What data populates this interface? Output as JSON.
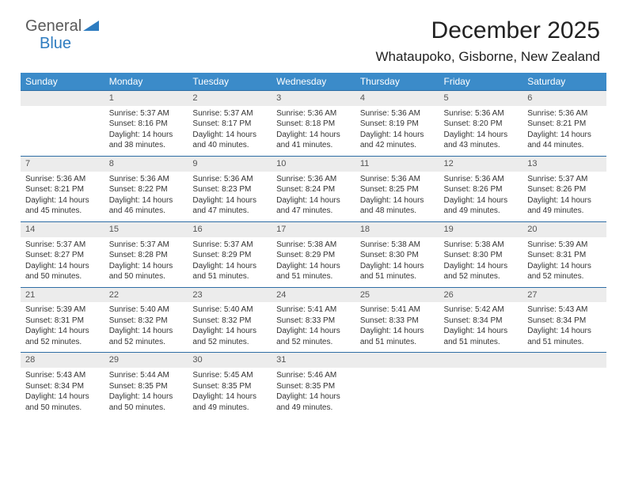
{
  "brand": {
    "part1": "General",
    "part2": "Blue"
  },
  "title": "December 2025",
  "location": "Whataupoko, Gisborne, New Zealand",
  "colors": {
    "header_bg": "#3b8bc9",
    "header_text": "#ffffff",
    "rule": "#2e6da4",
    "daynum_bg": "#ececec",
    "brand_blue": "#2e7cc0",
    "text": "#333333"
  },
  "typography": {
    "title_fontsize": 30,
    "location_fontsize": 17,
    "weekday_fontsize": 12,
    "daynum_fontsize": 11,
    "body_fontsize": 10
  },
  "weekdays": [
    "Sunday",
    "Monday",
    "Tuesday",
    "Wednesday",
    "Thursday",
    "Friday",
    "Saturday"
  ],
  "weeks": [
    [
      null,
      {
        "n": "1",
        "sr": "5:37 AM",
        "ss": "8:16 PM",
        "dl": "14 hours and 38 minutes."
      },
      {
        "n": "2",
        "sr": "5:37 AM",
        "ss": "8:17 PM",
        "dl": "14 hours and 40 minutes."
      },
      {
        "n": "3",
        "sr": "5:36 AM",
        "ss": "8:18 PM",
        "dl": "14 hours and 41 minutes."
      },
      {
        "n": "4",
        "sr": "5:36 AM",
        "ss": "8:19 PM",
        "dl": "14 hours and 42 minutes."
      },
      {
        "n": "5",
        "sr": "5:36 AM",
        "ss": "8:20 PM",
        "dl": "14 hours and 43 minutes."
      },
      {
        "n": "6",
        "sr": "5:36 AM",
        "ss": "8:21 PM",
        "dl": "14 hours and 44 minutes."
      }
    ],
    [
      {
        "n": "7",
        "sr": "5:36 AM",
        "ss": "8:21 PM",
        "dl": "14 hours and 45 minutes."
      },
      {
        "n": "8",
        "sr": "5:36 AM",
        "ss": "8:22 PM",
        "dl": "14 hours and 46 minutes."
      },
      {
        "n": "9",
        "sr": "5:36 AM",
        "ss": "8:23 PM",
        "dl": "14 hours and 47 minutes."
      },
      {
        "n": "10",
        "sr": "5:36 AM",
        "ss": "8:24 PM",
        "dl": "14 hours and 47 minutes."
      },
      {
        "n": "11",
        "sr": "5:36 AM",
        "ss": "8:25 PM",
        "dl": "14 hours and 48 minutes."
      },
      {
        "n": "12",
        "sr": "5:36 AM",
        "ss": "8:26 PM",
        "dl": "14 hours and 49 minutes."
      },
      {
        "n": "13",
        "sr": "5:37 AM",
        "ss": "8:26 PM",
        "dl": "14 hours and 49 minutes."
      }
    ],
    [
      {
        "n": "14",
        "sr": "5:37 AM",
        "ss": "8:27 PM",
        "dl": "14 hours and 50 minutes."
      },
      {
        "n": "15",
        "sr": "5:37 AM",
        "ss": "8:28 PM",
        "dl": "14 hours and 50 minutes."
      },
      {
        "n": "16",
        "sr": "5:37 AM",
        "ss": "8:29 PM",
        "dl": "14 hours and 51 minutes."
      },
      {
        "n": "17",
        "sr": "5:38 AM",
        "ss": "8:29 PM",
        "dl": "14 hours and 51 minutes."
      },
      {
        "n": "18",
        "sr": "5:38 AM",
        "ss": "8:30 PM",
        "dl": "14 hours and 51 minutes."
      },
      {
        "n": "19",
        "sr": "5:38 AM",
        "ss": "8:30 PM",
        "dl": "14 hours and 52 minutes."
      },
      {
        "n": "20",
        "sr": "5:39 AM",
        "ss": "8:31 PM",
        "dl": "14 hours and 52 minutes."
      }
    ],
    [
      {
        "n": "21",
        "sr": "5:39 AM",
        "ss": "8:31 PM",
        "dl": "14 hours and 52 minutes."
      },
      {
        "n": "22",
        "sr": "5:40 AM",
        "ss": "8:32 PM",
        "dl": "14 hours and 52 minutes."
      },
      {
        "n": "23",
        "sr": "5:40 AM",
        "ss": "8:32 PM",
        "dl": "14 hours and 52 minutes."
      },
      {
        "n": "24",
        "sr": "5:41 AM",
        "ss": "8:33 PM",
        "dl": "14 hours and 52 minutes."
      },
      {
        "n": "25",
        "sr": "5:41 AM",
        "ss": "8:33 PM",
        "dl": "14 hours and 51 minutes."
      },
      {
        "n": "26",
        "sr": "5:42 AM",
        "ss": "8:34 PM",
        "dl": "14 hours and 51 minutes."
      },
      {
        "n": "27",
        "sr": "5:43 AM",
        "ss": "8:34 PM",
        "dl": "14 hours and 51 minutes."
      }
    ],
    [
      {
        "n": "28",
        "sr": "5:43 AM",
        "ss": "8:34 PM",
        "dl": "14 hours and 50 minutes."
      },
      {
        "n": "29",
        "sr": "5:44 AM",
        "ss": "8:35 PM",
        "dl": "14 hours and 50 minutes."
      },
      {
        "n": "30",
        "sr": "5:45 AM",
        "ss": "8:35 PM",
        "dl": "14 hours and 49 minutes."
      },
      {
        "n": "31",
        "sr": "5:46 AM",
        "ss": "8:35 PM",
        "dl": "14 hours and 49 minutes."
      },
      null,
      null,
      null
    ]
  ],
  "labels": {
    "sunrise": "Sunrise:",
    "sunset": "Sunset:",
    "daylight": "Daylight:"
  }
}
